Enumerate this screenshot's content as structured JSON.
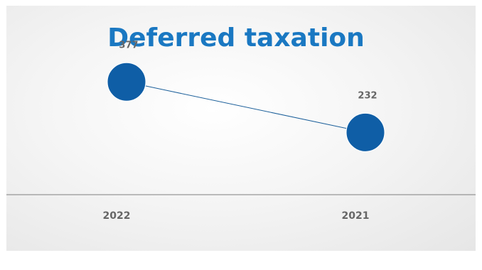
{
  "chart_data": {
    "type": "line",
    "title": "Deferred taxation",
    "categories": [
      "2022",
      "2021"
    ],
    "values": [
      377,
      232
    ],
    "data_labels": [
      "377",
      "232"
    ],
    "xlabel": "",
    "ylabel": "",
    "ylim": [
      0,
      600
    ],
    "grid": false,
    "legend": "none",
    "colors": {
      "title": "#1a78c2",
      "marker": "#0f5ea6",
      "line": "#1b5f9a",
      "axis": "#7f7f7f",
      "label": "#666666"
    }
  }
}
